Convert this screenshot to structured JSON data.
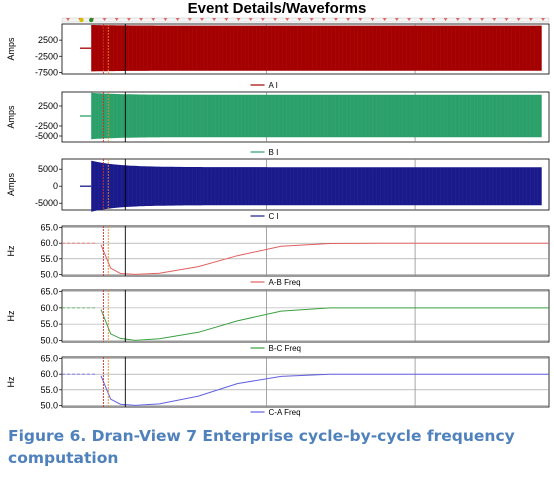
{
  "title": "Event Details/Waveforms",
  "caption": {
    "label": "Figure 6.",
    "text": "Dran-View 7 Enterprise cycle-by-cycle frequency computation"
  },
  "chart_data": [
    {
      "type": "area",
      "ylabel": "Amps",
      "yticks": [
        "2500",
        "-2500",
        "-7500"
      ],
      "ytick_values": [
        2500,
        -2500,
        -7500
      ],
      "ylim": [
        -8000,
        7500
      ],
      "legend": "A I",
      "color": "#a40000",
      "envelope": {
        "pre_event_level": 0,
        "peak_after_event": 7200,
        "steady_amplitude": 7000
      }
    },
    {
      "type": "area",
      "ylabel": "Amps",
      "yticks": [
        "2500",
        "-2500",
        "-5000"
      ],
      "ytick_values": [
        2500,
        -2500,
        -5000
      ],
      "ylim": [
        -6500,
        6000
      ],
      "legend": "B I",
      "color": "#2ca06a",
      "envelope": {
        "pre_event_level": 0,
        "peak_after_event": 5800,
        "steady_amplitude": 5300
      }
    },
    {
      "type": "area",
      "ylabel": "Amps",
      "yticks": [
        "5000",
        "0",
        "-5000"
      ],
      "ytick_values": [
        5000,
        0,
        -5000
      ],
      "ylim": [
        -7000,
        8000
      ],
      "legend": "C I",
      "color": "#1a1a8c",
      "envelope": {
        "pre_event_level": 0,
        "peak_after_event": 7500,
        "steady_amplitude": 5600
      }
    },
    {
      "type": "line",
      "ylabel": "Hz",
      "yticks": [
        "65.0",
        "60.0",
        "55.0",
        "50.0"
      ],
      "ytick_values": [
        65,
        60,
        55,
        50
      ],
      "ylim": [
        49.5,
        65.5
      ],
      "legend": "A-B Freq",
      "color": "#e06060",
      "series": [
        {
          "t": 0.08,
          "hz": 59.5
        },
        {
          "t": 0.1,
          "hz": 52.0
        },
        {
          "t": 0.12,
          "hz": 50.3
        },
        {
          "t": 0.15,
          "hz": 50.0
        },
        {
          "t": 0.2,
          "hz": 50.4
        },
        {
          "t": 0.28,
          "hz": 52.5
        },
        {
          "t": 0.36,
          "hz": 56.0
        },
        {
          "t": 0.45,
          "hz": 59.0
        },
        {
          "t": 0.55,
          "hz": 59.9
        },
        {
          "t": 0.7,
          "hz": 60.0
        },
        {
          "t": 1.0,
          "hz": 60.0
        }
      ]
    },
    {
      "type": "line",
      "ylabel": "Hz",
      "yticks": [
        "65.0",
        "60.0",
        "55.0",
        "50.0"
      ],
      "ytick_values": [
        65,
        60,
        55,
        50
      ],
      "ylim": [
        49.5,
        65.5
      ],
      "legend": "B-C Freq",
      "color": "#3aa040",
      "series": [
        {
          "t": 0.08,
          "hz": 59.5
        },
        {
          "t": 0.1,
          "hz": 52.0
        },
        {
          "t": 0.12,
          "hz": 50.6
        },
        {
          "t": 0.15,
          "hz": 50.0
        },
        {
          "t": 0.2,
          "hz": 50.5
        },
        {
          "t": 0.28,
          "hz": 52.5
        },
        {
          "t": 0.36,
          "hz": 56.0
        },
        {
          "t": 0.45,
          "hz": 59.0
        },
        {
          "t": 0.55,
          "hz": 60.0
        },
        {
          "t": 0.7,
          "hz": 60.0
        },
        {
          "t": 1.0,
          "hz": 60.0
        }
      ]
    },
    {
      "type": "line",
      "ylabel": "Hz",
      "yticks": [
        "65.0",
        "60.0",
        "55.0",
        "50.0"
      ],
      "ytick_values": [
        65,
        60,
        55,
        50
      ],
      "ylim": [
        49.5,
        65.5
      ],
      "legend": "C-A Freq",
      "color": "#6060e0",
      "series": [
        {
          "t": 0.08,
          "hz": 59.5
        },
        {
          "t": 0.1,
          "hz": 52.0
        },
        {
          "t": 0.12,
          "hz": 50.4
        },
        {
          "t": 0.15,
          "hz": 50.0
        },
        {
          "t": 0.2,
          "hz": 50.5
        },
        {
          "t": 0.28,
          "hz": 53.0
        },
        {
          "t": 0.36,
          "hz": 57.0
        },
        {
          "t": 0.45,
          "hz": 59.3
        },
        {
          "t": 0.55,
          "hz": 60.0
        },
        {
          "t": 0.7,
          "hz": 60.0
        },
        {
          "t": 1.0,
          "hz": 60.0
        }
      ]
    }
  ],
  "colors": {
    "cursor_red": "#cc2a2a",
    "cursor_orange": "#e08a20",
    "cursor_black": "#000000",
    "grid": "#7f7f7f",
    "caption": "#4f81bd"
  }
}
